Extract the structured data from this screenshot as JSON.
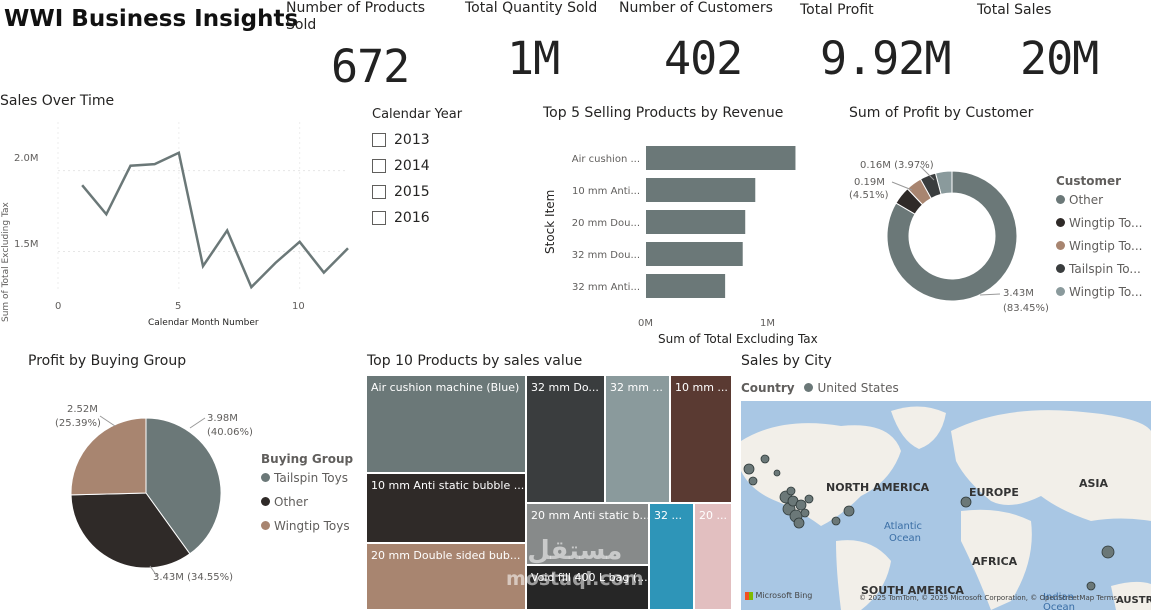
{
  "header": {
    "title": "WWI Business Insights"
  },
  "kpis": [
    {
      "label": "Number of Products Sold",
      "value": "672"
    },
    {
      "label": "Total Quantity Sold",
      "value": "1M"
    },
    {
      "label": "Number of Customers",
      "value": "402"
    },
    {
      "label": "Total Profit",
      "value": "9.92M"
    },
    {
      "label": "Total Sales",
      "value": "20M"
    }
  ],
  "sales_over_time": {
    "title": "Sales Over Time",
    "ylabel": "Sum of Total Excluding Tax",
    "xlabel": "Calendar Month Number",
    "yticks": [
      "2.0M",
      "1.5M"
    ],
    "xticks": [
      "0",
      "5",
      "10"
    ]
  },
  "slicer": {
    "title": "Calendar Year",
    "options": [
      "2013",
      "2014",
      "2015",
      "2016"
    ]
  },
  "top5": {
    "title": "Top 5 Selling Products by Revenue",
    "ylabel": "Stock Item",
    "xlabel": "Sum of Total Excluding Tax",
    "xticks": [
      "0M",
      "1M"
    ]
  },
  "profit_by_customer": {
    "title": "Sum of Profit by Customer",
    "legend_title": "Customer",
    "labels": [
      "0.16M (3.97%)",
      "0.19M",
      "(4.51%)",
      "3.43M",
      "(83.45%)"
    ]
  },
  "profit_by_group": {
    "title": "Profit by Buying Group",
    "legend_title": "Buying Group",
    "labels": [
      "3.98M",
      "(40.06%)",
      "2.52M",
      "(25.39%)",
      "3.43M (34.55%)"
    ]
  },
  "treemap": {
    "title": "Top 10 Products by sales value",
    "tiles": [
      "Air cushion machine (Blue)",
      "10 mm Anti static bubble ...",
      "20 mm Double sided bub...",
      "32 mm Do...",
      "32 mm ...",
      "10 mm ...",
      "20 mm Anti static b...",
      "Void fill 400 L bag (...",
      "32 ...",
      "20 ..."
    ]
  },
  "map": {
    "title": "Sales by City",
    "legend_label": "Country",
    "legend_item": "United States",
    "labels": [
      "NORTH AMERICA",
      "EUROPE",
      "ASIA",
      "Atlantic",
      "Ocean",
      "AFRICA",
      "SOUTH AMERICA",
      "Indian",
      "Ocean",
      "AUSTR"
    ],
    "attribution": "© 2025 TomTom, © 2025 Microsoft Corporation, © OpenStreetMap  Terms",
    "bing": "Microsoft Bing"
  },
  "watermark": {
    "line1": "مستقل",
    "line2": "mostaql.com"
  },
  "chart_data": [
    {
      "type": "line",
      "title": "Sales Over Time",
      "xlabel": "Calendar Month Number",
      "ylabel": "Sum of Total Excluding Tax",
      "x": [
        1,
        2,
        3,
        4,
        5,
        6,
        7,
        8,
        9,
        10,
        11,
        12
      ],
      "y": [
        1.91,
        1.73,
        2.03,
        2.04,
        2.11,
        1.41,
        1.63,
        1.28,
        1.43,
        1.56,
        1.37,
        1.52
      ],
      "ylim": [
        1.25,
        2.3
      ],
      "xlim": [
        0,
        12
      ],
      "grid": true
    },
    {
      "type": "bar",
      "orientation": "horizontal",
      "title": "Top 5 Selling Products by Revenue",
      "categories": [
        "Air cushion ...",
        "10 mm Anti...",
        "20 mm Dou...",
        "32 mm Dou...",
        "32 mm Anti..."
      ],
      "values": [
        1.19,
        0.87,
        0.79,
        0.77,
        0.63
      ],
      "xlabel": "Sum of Total Excluding Tax",
      "ylabel": "Stock Item",
      "xlim": [
        0,
        1.25
      ],
      "color": "#6b7878"
    },
    {
      "type": "pie",
      "variant": "donut",
      "title": "Sum of Profit by Customer",
      "categories": [
        "Other",
        "Wingtip To...",
        "Wingtip To...",
        "Tailspin To...",
        "Wingtip To..."
      ],
      "values": [
        83.45,
        4.51,
        3.97,
        3.97,
        4.1
      ],
      "colors": [
        "#6b7878",
        "#2f2a28",
        "#a88570",
        "#3a3d3e",
        "#8a9a9c"
      ]
    },
    {
      "type": "pie",
      "title": "Profit by Buying Group",
      "categories": [
        "Tailspin Toys",
        "Other",
        "Wingtip Toys"
      ],
      "values": [
        40.06,
        34.55,
        25.39
      ],
      "colors": [
        "#6b7878",
        "#2f2a28",
        "#a88570"
      ]
    }
  ]
}
